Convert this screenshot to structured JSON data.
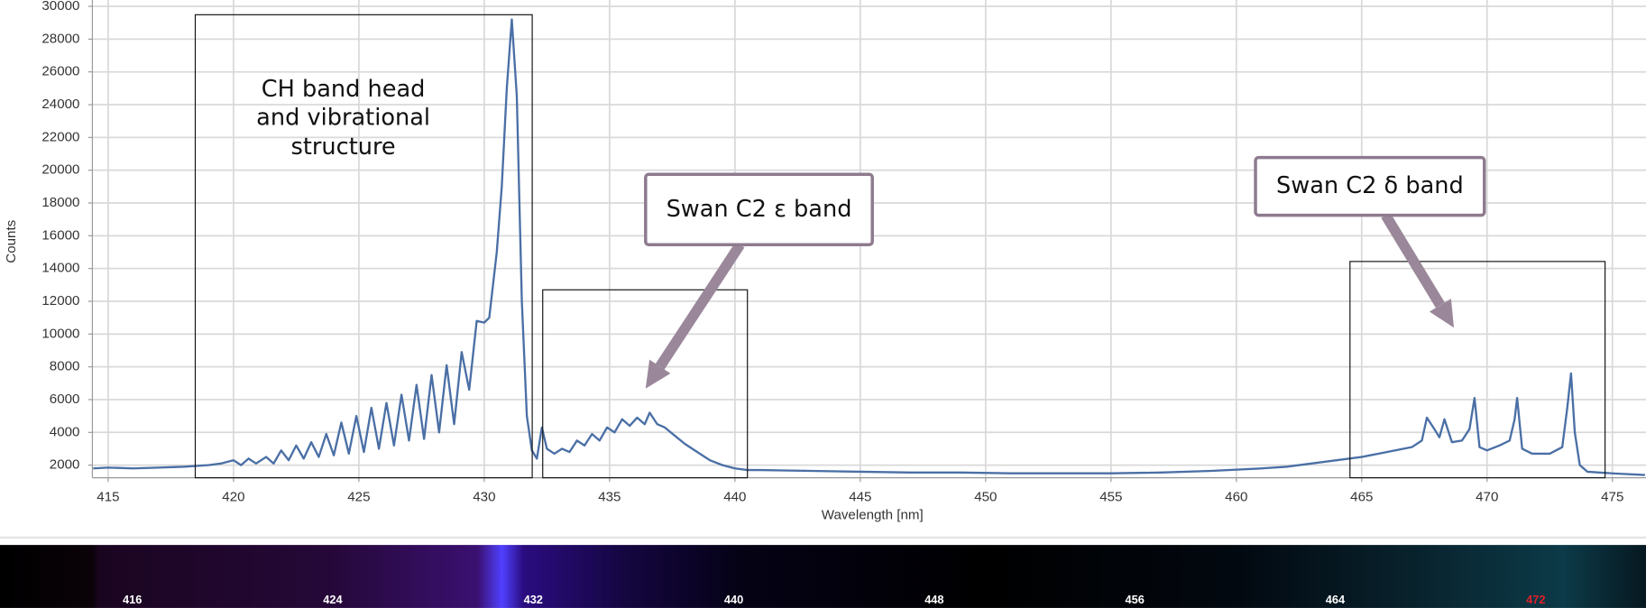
{
  "chart_data": {
    "type": "line",
    "x_label": "Wavelength [nm]",
    "y_label": "Counts",
    "xlim": [
      414.37,
      476.34
    ],
    "ylim": [
      1230,
      30000
    ],
    "xticks": [
      415,
      420,
      425,
      430,
      435,
      440,
      445,
      450,
      455,
      460,
      465,
      470,
      475
    ],
    "yticks": [
      2000,
      4000,
      6000,
      8000,
      10000,
      12000,
      14000,
      16000,
      18000,
      20000,
      22000,
      24000,
      26000,
      28000,
      30000
    ],
    "grid": true,
    "x": [
      414.4,
      415,
      416,
      417,
      418,
      419,
      419.5,
      420,
      420.3,
      420.6,
      420.9,
      421.3,
      421.6,
      421.9,
      422.2,
      422.5,
      422.8,
      423.1,
      423.4,
      423.7,
      424.0,
      424.3,
      424.6,
      424.9,
      425.2,
      425.5,
      425.8,
      426.1,
      426.4,
      426.7,
      427.0,
      427.3,
      427.6,
      427.9,
      428.2,
      428.5,
      428.8,
      429.1,
      429.4,
      429.7,
      430.0,
      430.2,
      430.5,
      430.7,
      430.9,
      431.1,
      431.3,
      431.5,
      431.7,
      431.9,
      432.1,
      432.3,
      432.5,
      432.8,
      433.1,
      433.4,
      433.7,
      434.0,
      434.3,
      434.6,
      434.9,
      435.2,
      435.5,
      435.8,
      436.1,
      436.4,
      436.6,
      436.9,
      437.2,
      437.6,
      438.0,
      438.5,
      439.0,
      439.5,
      440.0,
      440.5,
      441,
      443,
      445,
      447,
      449,
      451,
      453,
      455,
      457,
      459,
      461,
      462,
      463,
      464,
      465,
      466,
      467,
      467.4,
      467.6,
      467.9,
      468.1,
      468.3,
      468.6,
      469.0,
      469.3,
      469.5,
      469.7,
      470.0,
      470.5,
      470.9,
      471.1,
      471.2,
      471.4,
      471.8,
      472.5,
      473.0,
      473.2,
      473.35,
      473.5,
      473.7,
      474,
      475,
      476.3
    ],
    "series": [
      {
        "color": "#4a6fa5",
        "values": [
          1800,
          1850,
          1800,
          1850,
          1900,
          2000,
          2100,
          2300,
          2000,
          2400,
          2100,
          2500,
          2100,
          2900,
          2300,
          3200,
          2400,
          3400,
          2500,
          3900,
          2600,
          4600,
          2700,
          5000,
          2800,
          5500,
          3000,
          5800,
          3200,
          6300,
          3500,
          6900,
          3600,
          7500,
          4000,
          8100,
          4500,
          8900,
          6600,
          10800,
          10700,
          11000,
          15000,
          19000,
          25000,
          29200,
          24500,
          12000,
          5000,
          2900,
          2400,
          4300,
          3000,
          2700,
          3000,
          2800,
          3500,
          3200,
          3900,
          3500,
          4300,
          4000,
          4800,
          4400,
          4900,
          4500,
          5200,
          4500,
          4300,
          3800,
          3300,
          2800,
          2300,
          2000,
          1800,
          1700,
          1700,
          1650,
          1600,
          1550,
          1550,
          1500,
          1500,
          1500,
          1550,
          1650,
          1800,
          1900,
          2100,
          2300,
          2500,
          2800,
          3100,
          3500,
          4900,
          4200,
          3700,
          4800,
          3400,
          3500,
          4200,
          6100,
          3100,
          2900,
          3200,
          3500,
          4800,
          6100,
          3000,
          2700,
          2700,
          3100,
          5500,
          7600,
          4000,
          2000,
          1600,
          1500,
          1400
        ]
      }
    ],
    "annotations": {
      "ch_band": [
        "CH band head",
        "and vibrational",
        "structure"
      ],
      "epsilon_band": "Swan C2 ε band",
      "delta_band": "Swan C2 δ band"
    }
  },
  "spectrum_strip": {
    "ticks": [
      416,
      424,
      432,
      440,
      448,
      456,
      464,
      472
    ],
    "tick_colors": [
      "#ffffff",
      "#ffffff",
      "#ffffff",
      "#ffffff",
      "#ffffff",
      "#ffffff",
      "#ffffff",
      "#e0202a"
    ]
  }
}
